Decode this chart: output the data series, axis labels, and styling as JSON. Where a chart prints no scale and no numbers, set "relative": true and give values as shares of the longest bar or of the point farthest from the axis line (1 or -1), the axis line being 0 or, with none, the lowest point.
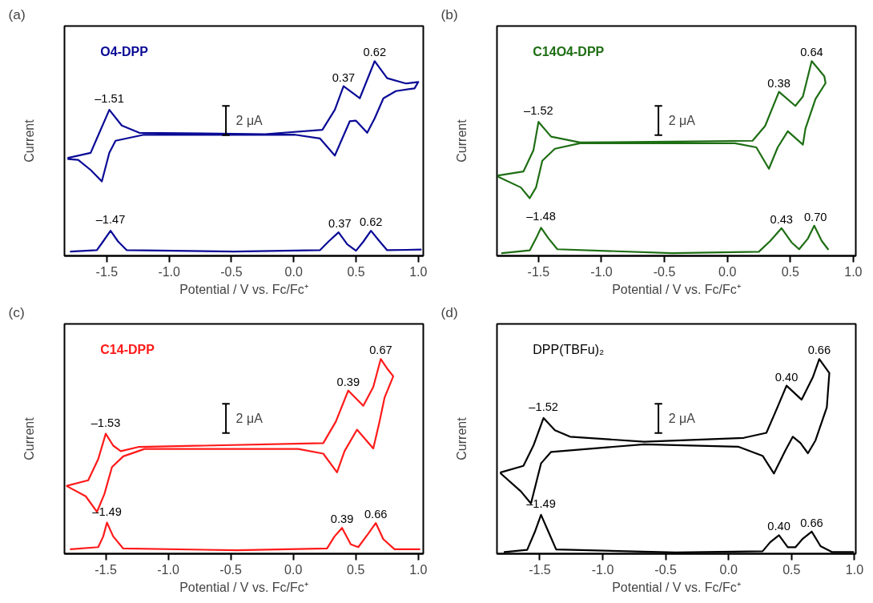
{
  "chart_data": [
    {
      "type": "line",
      "title": "O4-DPP",
      "xlabel": "Potential / V vs. Fc/Fc⁺",
      "ylabel": "Current",
      "relative": true,
      "tick_labels": "x",
      "xlim": [
        -1.84,
        1.04
      ],
      "xticks": [
        {
          "value": -1.5,
          "label": "-1.5"
        },
        {
          "value": -1.0,
          "label": "-1.0"
        },
        {
          "value": -0.5,
          "label": "-0.5"
        },
        {
          "value": 0.0,
          "label": "0.0"
        },
        {
          "value": 0.5,
          "label": "0.5"
        },
        {
          "value": 1.0,
          "label": "1.0"
        }
      ],
      "series": [
        {
          "color": "#0a0a96",
          "x": [
            -1.81,
            -1.63,
            -1.56,
            -1.48,
            -1.38,
            -1.24,
            -0.23,
            0.23,
            0.33,
            0.4,
            0.53,
            0.65,
            0.75,
            0.9,
            1.0,
            0.97,
            0.82,
            0.72,
            0.65,
            0.59,
            0.5,
            0.45,
            0.4,
            0.33,
            0.21,
            0.01,
            -1.21,
            -1.43,
            -1.48,
            -1.54,
            -1.63,
            -1.73,
            -1.81
          ],
          "values": [
            0.503,
            0.529,
            0.632,
            0.75,
            0.669,
            0.632,
            0.625,
            0.647,
            0.75,
            0.871,
            0.809,
            1.0,
            0.912,
            0.885,
            0.893,
            0.86,
            0.846,
            0.809,
            0.706,
            0.632,
            0.694,
            0.691,
            0.618,
            0.515,
            0.603,
            0.622,
            0.621,
            0.591,
            0.529,
            0.382,
            0.441,
            0.493,
            0.497
          ]
        },
        {
          "color": "#0a0a96",
          "x": [
            -1.79,
            -1.58,
            -1.53,
            -1.47,
            -1.41,
            -1.34,
            -0.48,
            0.21,
            0.28,
            0.36,
            0.43,
            0.5,
            0.56,
            0.62,
            0.69,
            0.75,
            1.02
          ],
          "values": [
            0.022,
            0.029,
            0.074,
            0.129,
            0.074,
            0.029,
            0.022,
            0.029,
            0.074,
            0.121,
            0.059,
            0.026,
            0.074,
            0.129,
            0.074,
            0.029,
            0.032
          ]
        }
      ],
      "annotations": [
        "(a)",
        "2 μA",
        {
          "text": "–1.51",
          "x": -1.48,
          "y": 0.75
        },
        {
          "text": "0.37",
          "x": 0.4,
          "y": 0.871
        },
        {
          "text": "0.62",
          "x": 0.65,
          "y": 1.0
        },
        {
          "text": "–1.47",
          "x": -1.47,
          "y": 0.129
        },
        {
          "text": "0.37",
          "x": 0.37,
          "y": 0.121
        },
        {
          "text": "0.62",
          "x": 0.62,
          "y": 0.129
        }
      ]
    },
    {
      "type": "line",
      "title": "C14O4-DPP",
      "xlabel": "Potential / V vs. Fc/Fc⁺",
      "ylabel": "Current",
      "relative": true,
      "tick_labels": "x",
      "xlim": [
        -1.83,
        1.02
      ],
      "xticks": [
        {
          "value": -1.5,
          "label": "-1.5"
        },
        {
          "value": -1.0,
          "label": "-1.0"
        },
        {
          "value": -0.5,
          "label": "-0.5"
        },
        {
          "value": 0.0,
          "label": "0.0"
        },
        {
          "value": 0.5,
          "label": "0.5"
        },
        {
          "value": 1.0,
          "label": "1.0"
        }
      ],
      "series": [
        {
          "color": "#1e6e14",
          "x": [
            -1.82,
            -1.62,
            -1.54,
            -1.5,
            -1.4,
            -1.17,
            0.2,
            0.3,
            0.41,
            0.54,
            0.6,
            0.67,
            0.77,
            0.78,
            0.7,
            0.62,
            0.6,
            0.48,
            0.4,
            0.33,
            0.23,
            0.06,
            -1.17,
            -1.37,
            -1.47,
            -1.52,
            -1.57,
            -1.64,
            -1.82
          ],
          "values": [
            0.413,
            0.433,
            0.543,
            0.688,
            0.612,
            0.582,
            0.591,
            0.667,
            0.842,
            0.77,
            0.818,
            1.0,
            0.922,
            0.887,
            0.805,
            0.653,
            0.571,
            0.64,
            0.557,
            0.447,
            0.557,
            0.578,
            0.578,
            0.55,
            0.488,
            0.351,
            0.296,
            0.351,
            0.406
          ]
        },
        {
          "color": "#1e6e14",
          "x": [
            -1.79,
            -1.57,
            -1.52,
            -1.48,
            -1.42,
            -1.35,
            -0.44,
            0.25,
            0.34,
            0.43,
            0.51,
            0.57,
            0.64,
            0.69,
            0.75,
            0.8
          ],
          "values": [
            0.014,
            0.028,
            0.089,
            0.144,
            0.089,
            0.034,
            0.014,
            0.021,
            0.076,
            0.142,
            0.069,
            0.034,
            0.089,
            0.155,
            0.076,
            0.034
          ]
        }
      ],
      "annotations": [
        "(b)",
        "2 μA",
        {
          "text": "–1.52",
          "x": -1.5,
          "y": 0.688
        },
        {
          "text": "0.38",
          "x": 0.41,
          "y": 0.842
        },
        {
          "text": "0.64",
          "x": 0.67,
          "y": 1.0
        },
        {
          "text": "–1.48",
          "x": -1.48,
          "y": 0.144
        },
        {
          "text": "0.43",
          "x": 0.43,
          "y": 0.142
        },
        {
          "text": "0.70",
          "x": 0.7,
          "y": 0.155
        }
      ]
    },
    {
      "type": "line",
      "title": "C14-DPP",
      "xlabel": "Potential / V vs. Fc/Fc⁺",
      "ylabel": "Current",
      "relative": true,
      "tick_labels": "x",
      "xlim": [
        -1.83,
        1.04
      ],
      "xticks": [
        {
          "value": -1.5,
          "label": "-1.5"
        },
        {
          "value": -1.0,
          "label": "-1.0"
        },
        {
          "value": -0.5,
          "label": "-0.5"
        },
        {
          "value": 0.0,
          "label": "0.0"
        },
        {
          "value": 0.5,
          "label": "0.5"
        },
        {
          "value": 1.0,
          "label": "1.0"
        }
      ],
      "series": [
        {
          "color": "#ff1a1a",
          "x": [
            -1.81,
            -1.64,
            -1.56,
            -1.5,
            -1.44,
            -1.38,
            -1.24,
            0.24,
            0.34,
            0.44,
            0.56,
            0.64,
            0.7,
            0.75,
            0.8,
            0.73,
            0.69,
            0.64,
            0.51,
            0.41,
            0.35,
            0.24,
            0.04,
            -1.19,
            -1.36,
            -1.45,
            -1.51,
            -1.57,
            -1.66,
            -1.81
          ],
          "values": [
            0.349,
            0.377,
            0.486,
            0.616,
            0.555,
            0.527,
            0.548,
            0.568,
            0.678,
            0.838,
            0.76,
            0.856,
            1.0,
            0.952,
            0.911,
            0.801,
            0.678,
            0.541,
            0.637,
            0.527,
            0.418,
            0.514,
            0.538,
            0.538,
            0.5,
            0.445,
            0.308,
            0.215,
            0.295,
            0.347
          ]
        },
        {
          "color": "#ff1a1a",
          "x": [
            -1.78,
            -1.56,
            -1.52,
            -1.49,
            -1.44,
            -1.36,
            -0.45,
            0.27,
            0.33,
            0.39,
            0.46,
            0.52,
            0.6,
            0.66,
            0.72,
            0.81,
            1.01
          ],
          "values": [
            0.023,
            0.034,
            0.089,
            0.16,
            0.089,
            0.027,
            0.018,
            0.027,
            0.089,
            0.133,
            0.048,
            0.034,
            0.103,
            0.158,
            0.075,
            0.023,
            0.023
          ]
        }
      ],
      "annotations": [
        "(c)",
        "2 μA",
        {
          "text": "–1.53",
          "x": -1.5,
          "y": 0.616
        },
        {
          "text": "0.39",
          "x": 0.44,
          "y": 0.838
        },
        {
          "text": "0.67",
          "x": 0.7,
          "y": 1.0
        },
        {
          "text": "–1.49",
          "x": -1.49,
          "y": 0.16
        },
        {
          "text": "0.39",
          "x": 0.39,
          "y": 0.133
        },
        {
          "text": "0.66",
          "x": 0.66,
          "y": 0.158
        }
      ]
    },
    {
      "type": "line",
      "title": "DPP(TBFu)₂",
      "xlabel": "Potential / V vs. Fc/Fc⁺",
      "ylabel": "Current",
      "relative": true,
      "tick_labels": "x",
      "xlim": [
        -1.84,
        1.01
      ],
      "xticks": [
        {
          "value": -1.5,
          "label": "-1.5"
        },
        {
          "value": -1.0,
          "label": "-1.0"
        },
        {
          "value": -0.5,
          "label": "-0.5"
        },
        {
          "value": 0.0,
          "label": "0.0"
        },
        {
          "value": 0.5,
          "label": "0.5"
        },
        {
          "value": 1.0,
          "label": "1.0"
        }
      ],
      "series": [
        {
          "color": "#000000",
          "x": [
            -1.81,
            -1.63,
            -1.55,
            -1.47,
            -1.38,
            -1.26,
            -0.67,
            0.12,
            0.3,
            0.37,
            0.46,
            0.58,
            0.67,
            0.72,
            0.8,
            0.78,
            0.69,
            0.63,
            0.57,
            0.51,
            0.45,
            0.36,
            0.27,
            0.08,
            -0.67,
            -1.41,
            -1.49,
            -1.57,
            -1.65,
            -1.81
          ],
          "values": [
            0.418,
            0.451,
            0.556,
            0.697,
            0.634,
            0.601,
            0.575,
            0.595,
            0.621,
            0.725,
            0.863,
            0.791,
            0.908,
            1.0,
            0.928,
            0.752,
            0.582,
            0.516,
            0.569,
            0.601,
            0.529,
            0.412,
            0.503,
            0.549,
            0.562,
            0.523,
            0.464,
            0.258,
            0.32,
            0.412
          ]
        },
        {
          "color": "#000000",
          "x": [
            -1.78,
            -1.6,
            -1.54,
            -1.49,
            -1.43,
            -1.37,
            -0.42,
            0.27,
            0.33,
            0.4,
            0.47,
            0.53,
            0.59,
            0.66,
            0.73,
            0.82,
            0.99
          ],
          "values": [
            0.009,
            0.02,
            0.111,
            0.2,
            0.111,
            0.022,
            0.007,
            0.013,
            0.059,
            0.095,
            0.033,
            0.033,
            0.078,
            0.114,
            0.039,
            0.009,
            0.009
          ]
        }
      ],
      "annotations": [
        "(d)",
        "2 μA",
        {
          "text": "–1.52",
          "x": -1.47,
          "y": 0.697
        },
        {
          "text": "0.40",
          "x": 0.46,
          "y": 0.863
        },
        {
          "text": "0.66",
          "x": 0.72,
          "y": 1.0
        },
        {
          "text": "–1.49",
          "x": -1.49,
          "y": 0.2
        },
        {
          "text": "0.40",
          "x": 0.4,
          "y": 0.095
        },
        {
          "text": "0.66",
          "x": 0.66,
          "y": 0.114
        }
      ]
    }
  ]
}
